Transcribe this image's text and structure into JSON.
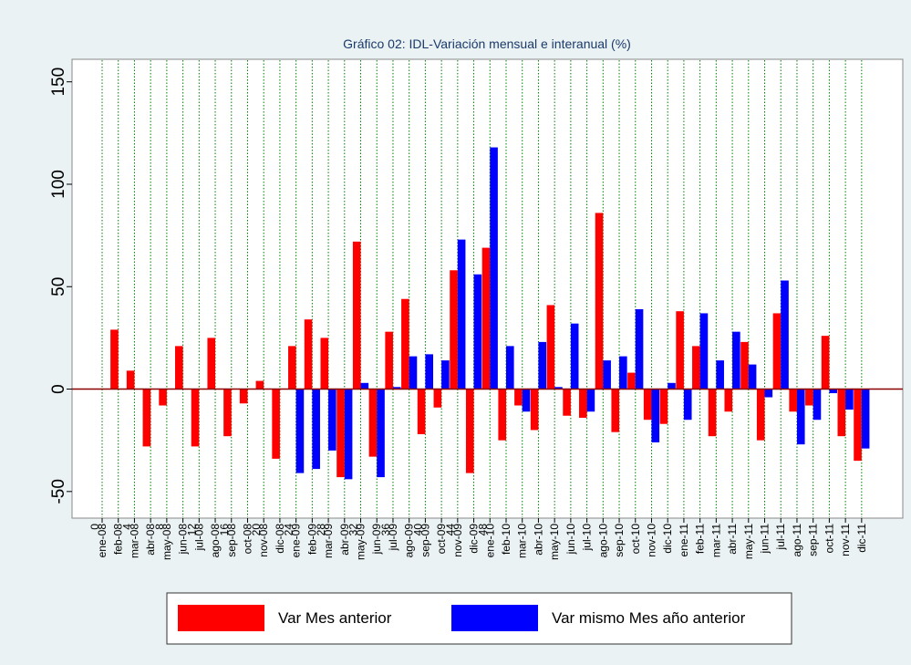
{
  "chart_data": {
    "type": "bar",
    "title": "Gráfico 02: IDL-Variación mensual e interanual (%)",
    "categories": [
      "ene-08",
      "feb-08",
      "mar-08",
      "abr-08",
      "may-08",
      "jun-08",
      "jul-08",
      "ago-08",
      "sep-08",
      "oct-08",
      "nov-08",
      "dic-08",
      "ene-09",
      "feb-09",
      "mar-09",
      "abr-09",
      "may-09",
      "jun-09",
      "jul-09",
      "ago-09",
      "sep-09",
      "oct-09",
      "nov-09",
      "dic-09",
      "ene-10",
      "feb-10",
      "mar-10",
      "abr-10",
      "may-10",
      "jun-10",
      "jul-10",
      "ago-10",
      "sep-10",
      "oct-10",
      "nov-10",
      "dic-10",
      "ene-11",
      "feb-11",
      "mar-11",
      "abr-11",
      "may-11",
      "jun-11",
      "jul-11",
      "ago-11",
      "sep-11",
      "oct-11",
      "nov-11",
      "dic-11"
    ],
    "series": [
      {
        "name": "Var Mes anterior",
        "color": "#ff0000",
        "values": [
          0,
          29,
          9,
          -28,
          -8,
          21,
          -28,
          25,
          -23,
          -7,
          4,
          -34,
          21,
          34,
          25,
          -43,
          72,
          -33,
          28,
          44,
          -22,
          -9,
          58,
          -41,
          69,
          -25,
          -8,
          -20,
          41,
          -13,
          -14,
          86,
          -21,
          8,
          -15,
          -17,
          38,
          21,
          -23,
          -11,
          23,
          -25,
          37,
          -11,
          -8,
          26,
          -23,
          -35
        ]
      },
      {
        "name": "Var mismo Mes año anterior",
        "color": "#0000ff",
        "values": [
          null,
          null,
          null,
          null,
          null,
          null,
          null,
          null,
          null,
          null,
          null,
          null,
          -41,
          -39,
          -30,
          -44,
          3,
          -43,
          1,
          16,
          17,
          14,
          73,
          56,
          118,
          21,
          -11,
          23,
          1,
          32,
          -11,
          14,
          16,
          39,
          -26,
          3,
          -15,
          37,
          14,
          28,
          12,
          -4,
          53,
          -27,
          -15,
          -2,
          -10,
          -29
        ]
      }
    ],
    "ylim": [
      -63,
      161
    ],
    "yticks": [
      -50,
      0,
      50,
      100,
      150
    ],
    "x2ticks": [
      0,
      4,
      8,
      12,
      16,
      20,
      24,
      28,
      32,
      36,
      40,
      44,
      48
    ],
    "grid": true,
    "grid_color": "#008000",
    "zero_line_color": "#8b0000"
  }
}
